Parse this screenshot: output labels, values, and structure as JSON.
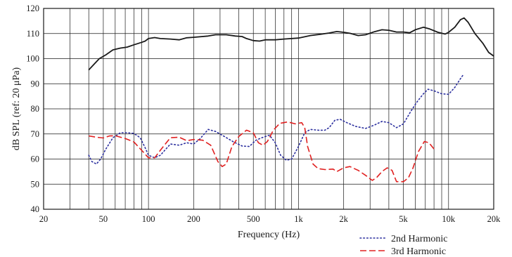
{
  "chart_data": {
    "type": "line",
    "xlabel": "Frequency (Hz)",
    "ylabel": "dB SPL (ref: 20 μPa)",
    "xscale": "log",
    "xlim": [
      20,
      20000
    ],
    "ylim": [
      40,
      120
    ],
    "grid": "on",
    "legend_position": "bottom-right",
    "x_ticks": [
      {
        "value": 20,
        "label": "20"
      },
      {
        "value": 50,
        "label": "50"
      },
      {
        "value": 100,
        "label": "100"
      },
      {
        "value": 200,
        "label": "200"
      },
      {
        "value": 500,
        "label": "500"
      },
      {
        "value": 1000,
        "label": "1k"
      },
      {
        "value": 2000,
        "label": "2k"
      },
      {
        "value": 5000,
        "label": "5k"
      },
      {
        "value": 10000,
        "label": "10k"
      },
      {
        "value": 20000,
        "label": "20k"
      }
    ],
    "y_ticks": [
      {
        "value": 40,
        "label": "40"
      },
      {
        "value": 50,
        "label": "50"
      },
      {
        "value": 60,
        "label": "60"
      },
      {
        "value": 70,
        "label": "70"
      },
      {
        "value": 80,
        "label": "80"
      },
      {
        "value": 90,
        "label": "90"
      },
      {
        "value": 100,
        "label": "100"
      },
      {
        "value": 110,
        "label": "110"
      },
      {
        "value": 120,
        "label": "120"
      }
    ],
    "series": [
      {
        "key": "fundamental",
        "color": "#1a1a1a",
        "style": "solid",
        "points": [
          [
            40,
            95.5
          ],
          [
            43,
            97.5
          ],
          [
            47,
            100
          ],
          [
            52,
            101.5
          ],
          [
            58,
            103.5
          ],
          [
            65,
            104.2
          ],
          [
            72,
            104.6
          ],
          [
            80,
            105.5
          ],
          [
            90,
            106.5
          ],
          [
            95,
            107
          ],
          [
            100,
            108
          ],
          [
            110,
            108.4
          ],
          [
            120,
            108
          ],
          [
            140,
            107.8
          ],
          [
            160,
            107.5
          ],
          [
            180,
            108.3
          ],
          [
            200,
            108.5
          ],
          [
            250,
            109
          ],
          [
            280,
            109.5
          ],
          [
            330,
            109.5
          ],
          [
            380,
            109
          ],
          [
            420,
            108.8
          ],
          [
            450,
            108
          ],
          [
            500,
            107.2
          ],
          [
            550,
            107
          ],
          [
            600,
            107.5
          ],
          [
            700,
            107.5
          ],
          [
            800,
            107.8
          ],
          [
            1000,
            108.2
          ],
          [
            1200,
            109.2
          ],
          [
            1400,
            109.7
          ],
          [
            1600,
            110.2
          ],
          [
            1800,
            110.8
          ],
          [
            2000,
            110.5
          ],
          [
            2200,
            110.1
          ],
          [
            2500,
            109.2
          ],
          [
            2800,
            109.5
          ],
          [
            3200,
            110.7
          ],
          [
            3600,
            111.5
          ],
          [
            4000,
            111.3
          ],
          [
            4500,
            110.6
          ],
          [
            5000,
            110.6
          ],
          [
            5500,
            110.3
          ],
          [
            6000,
            111.5
          ],
          [
            6800,
            112.5
          ],
          [
            7500,
            111.8
          ],
          [
            8500,
            110.5
          ],
          [
            9500,
            109.8
          ],
          [
            10000,
            110.5
          ],
          [
            11000,
            112.5
          ],
          [
            12000,
            115.5
          ],
          [
            12700,
            116.2
          ],
          [
            13500,
            114.5
          ],
          [
            15000,
            110
          ],
          [
            17000,
            106
          ],
          [
            18500,
            102.5
          ],
          [
            20000,
            101
          ]
        ]
      },
      {
        "key": "second",
        "name": "2nd Harmonic",
        "color": "#2b2f9e",
        "style": "dotted",
        "points": [
          [
            40,
            61.5
          ],
          [
            42,
            59
          ],
          [
            45,
            58
          ],
          [
            48,
            60
          ],
          [
            52,
            64
          ],
          [
            58,
            68.5
          ],
          [
            65,
            70.5
          ],
          [
            72,
            70.5
          ],
          [
            80,
            70.2
          ],
          [
            88,
            68.5
          ],
          [
            95,
            64.5
          ],
          [
            100,
            61.5
          ],
          [
            110,
            60.5
          ],
          [
            120,
            61.5
          ],
          [
            140,
            66
          ],
          [
            160,
            65.5
          ],
          [
            180,
            66.5
          ],
          [
            200,
            66
          ],
          [
            220,
            68
          ],
          [
            250,
            71.8
          ],
          [
            280,
            71
          ],
          [
            320,
            69
          ],
          [
            370,
            66.8
          ],
          [
            420,
            65.2
          ],
          [
            470,
            65
          ],
          [
            520,
            67.5
          ],
          [
            570,
            68.5
          ],
          [
            640,
            69.5
          ],
          [
            700,
            66.5
          ],
          [
            760,
            61.5
          ],
          [
            830,
            59.5
          ],
          [
            900,
            60
          ],
          [
            1000,
            65
          ],
          [
            1100,
            70.5
          ],
          [
            1200,
            71.8
          ],
          [
            1350,
            71.5
          ],
          [
            1500,
            71.5
          ],
          [
            1600,
            72.5
          ],
          [
            1750,
            75.5
          ],
          [
            1900,
            75.8
          ],
          [
            2100,
            74.5
          ],
          [
            2400,
            73
          ],
          [
            2800,
            72.2
          ],
          [
            3200,
            73.5
          ],
          [
            3600,
            75
          ],
          [
            4000,
            74.5
          ],
          [
            4500,
            72.5
          ],
          [
            5000,
            74
          ],
          [
            5600,
            79
          ],
          [
            6200,
            83
          ],
          [
            6800,
            86
          ],
          [
            7300,
            87.8
          ],
          [
            8000,
            87.2
          ],
          [
            9000,
            86
          ],
          [
            10000,
            85.8
          ],
          [
            11000,
            88.5
          ],
          [
            12000,
            92
          ],
          [
            12500,
            93.5
          ]
        ]
      },
      {
        "key": "third",
        "name": "3rd Harmonic",
        "color": "#e02020",
        "style": "dashed",
        "points": [
          [
            40,
            69.2
          ],
          [
            45,
            68.7
          ],
          [
            50,
            68.4
          ],
          [
            55,
            69.2
          ],
          [
            60,
            69.3
          ],
          [
            70,
            68.2
          ],
          [
            80,
            66.8
          ],
          [
            90,
            63.5
          ],
          [
            100,
            60.5
          ],
          [
            110,
            60.5
          ],
          [
            120,
            63.5
          ],
          [
            140,
            68.5
          ],
          [
            160,
            68.7
          ],
          [
            180,
            67.3
          ],
          [
            200,
            67.8
          ],
          [
            230,
            67.5
          ],
          [
            260,
            65.5
          ],
          [
            290,
            59
          ],
          [
            310,
            57
          ],
          [
            330,
            58
          ],
          [
            360,
            65
          ],
          [
            400,
            69
          ],
          [
            450,
            71.5
          ],
          [
            500,
            70.5
          ],
          [
            540,
            66.5
          ],
          [
            580,
            65.5
          ],
          [
            620,
            67
          ],
          [
            680,
            71.5
          ],
          [
            750,
            74.2
          ],
          [
            850,
            74.8
          ],
          [
            950,
            74
          ],
          [
            1050,
            74.5
          ],
          [
            1100,
            72.5
          ],
          [
            1150,
            65
          ],
          [
            1250,
            58
          ],
          [
            1350,
            56.2
          ],
          [
            1500,
            55.8
          ],
          [
            1700,
            56
          ],
          [
            1800,
            55
          ],
          [
            2000,
            56.5
          ],
          [
            2200,
            57
          ],
          [
            2500,
            55.5
          ],
          [
            2800,
            53.5
          ],
          [
            3100,
            51.5
          ],
          [
            3300,
            52.5
          ],
          [
            3600,
            55
          ],
          [
            3900,
            56.5
          ],
          [
            4200,
            55.5
          ],
          [
            4500,
            51
          ],
          [
            5000,
            51
          ],
          [
            5400,
            52.5
          ],
          [
            5800,
            56.5
          ],
          [
            6300,
            63
          ],
          [
            6900,
            67
          ],
          [
            7400,
            66.5
          ],
          [
            8000,
            64
          ]
        ]
      }
    ]
  }
}
